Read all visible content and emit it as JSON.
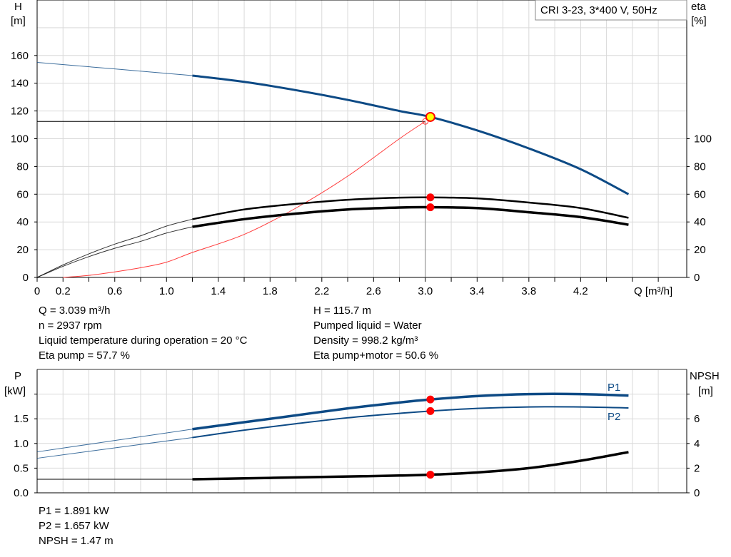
{
  "colors": {
    "head": "#0d4a85",
    "eta": "#000000",
    "system": "#ff3b3b",
    "point": "#ff0000",
    "duty": "#ffff00",
    "power": "#0d4a85",
    "npsh": "#000000",
    "grid": "#d9d9d9"
  },
  "chart_data": [
    {
      "type": "line",
      "title": "CRI 3-23, 3*400 V, 50Hz",
      "xlabel": "Q [m³/h]",
      "ylabel_left": "H",
      "ylabel_left_unit": "[m]",
      "ylabel_right": "eta",
      "ylabel_right_unit": "[%]",
      "xlim": [
        0,
        5.02
      ],
      "ylim": [
        0,
        200
      ],
      "y2lim": [
        0,
        200
      ],
      "grid": true,
      "xticks": [
        "0",
        "0.2",
        "0.6",
        "1.0",
        "1.4",
        "1.8",
        "2.2",
        "2.6",
        "3.0",
        "3.4",
        "3.8",
        "4.2"
      ],
      "xtick_values": [
        0,
        0.2,
        0.6,
        1.0,
        1.4,
        1.8,
        2.2,
        2.6,
        3.0,
        3.4,
        3.8,
        4.2
      ],
      "yticks": [
        0,
        20,
        40,
        60,
        80,
        100,
        120,
        140,
        160
      ],
      "y2ticks": [
        0,
        20,
        40,
        60,
        80,
        100
      ],
      "series": [
        {
          "id": "H",
          "axis": "left",
          "dashed_until": 1.2,
          "x": [
            0,
            0.6,
            1.2,
            1.6,
            2.0,
            2.4,
            2.8,
            3.039,
            3.4,
            3.8,
            4.2,
            4.57
          ],
          "y": [
            155,
            150.3,
            145.5,
            141,
            135,
            128,
            120,
            115.7,
            106,
            93,
            78,
            60
          ]
        },
        {
          "id": "eta_pump",
          "axis": "right",
          "dashed_until": 1.2,
          "x": [
            0,
            0.2,
            0.4,
            0.6,
            0.8,
            1.0,
            1.2,
            1.6,
            2.0,
            2.4,
            2.8,
            3.039,
            3.4,
            3.8,
            4.2,
            4.57
          ],
          "y": [
            0,
            9,
            17,
            24,
            30,
            37,
            42,
            49,
            53,
            56,
            57.5,
            57.7,
            57,
            54,
            50,
            43
          ]
        },
        {
          "id": "eta_total",
          "axis": "right",
          "dashed_until": 1.2,
          "x": [
            0,
            0.2,
            0.4,
            0.6,
            0.8,
            1.0,
            1.2,
            1.6,
            2.0,
            2.4,
            2.8,
            3.039,
            3.4,
            3.8,
            4.2,
            4.57
          ],
          "y": [
            0,
            8,
            15,
            21,
            26,
            32,
            36.5,
            42,
            46,
            49,
            50.4,
            50.6,
            50,
            47,
            43.5,
            38
          ]
        },
        {
          "id": "system",
          "axis": "left",
          "x": [
            0.2,
            0.4,
            0.6,
            0.8,
            1.0,
            1.2,
            1.6,
            2.0,
            2.4,
            2.8,
            3.0
          ],
          "y": [
            0,
            1.5,
            4,
            7,
            11,
            18,
            31,
            50,
            73,
            100,
            112.5
          ]
        }
      ],
      "duty_point": {
        "Q": 3.039,
        "H": 115.7,
        "eta_pump": 57.7,
        "eta_total": 50.6
      },
      "reference_lines": {
        "H": 112.5,
        "Q": 3.0
      }
    },
    {
      "type": "line",
      "ylabel_left": "P",
      "ylabel_left_unit": "[kW]",
      "ylabel_right": "NPSH",
      "ylabel_right_unit": "[m]",
      "xlim": [
        0,
        5.02
      ],
      "ylim": [
        0,
        2.5
      ],
      "y2lim": [
        0,
        10
      ],
      "grid": true,
      "yticks": [
        "0.0",
        "0.5",
        "1.0",
        "1.5"
      ],
      "ytick_values": [
        0,
        0.5,
        1.0,
        1.5,
        2.0
      ],
      "y2ticks": [
        "0",
        "2",
        "4",
        "6"
      ],
      "y2tick_values": [
        0,
        2,
        4,
        6,
        8
      ],
      "series": [
        {
          "id": "P1",
          "name": "P1",
          "axis": "left",
          "dashed_until": 1.2,
          "x": [
            0,
            1.2,
            1.6,
            2.0,
            2.4,
            2.8,
            3.039,
            3.4,
            3.8,
            4.2,
            4.57
          ],
          "y": [
            0.83,
            1.29,
            1.43,
            1.57,
            1.71,
            1.83,
            1.891,
            1.96,
            2.0,
            2.0,
            1.97
          ]
        },
        {
          "id": "P2",
          "name": "P2",
          "axis": "left",
          "dashed_until": 1.2,
          "x": [
            0,
            1.2,
            1.6,
            2.0,
            2.4,
            2.8,
            3.039,
            3.4,
            3.8,
            4.2,
            4.57
          ],
          "y": [
            0.7,
            1.12,
            1.27,
            1.4,
            1.52,
            1.61,
            1.657,
            1.71,
            1.74,
            1.74,
            1.72
          ]
        },
        {
          "id": "NPSH",
          "axis": "right",
          "thin_until": 1.2,
          "x": [
            0,
            1.2,
            1.6,
            2.0,
            2.4,
            2.8,
            3.039,
            3.4,
            3.8,
            4.2,
            4.57
          ],
          "y": [
            1.1,
            1.1,
            1.17,
            1.25,
            1.32,
            1.4,
            1.47,
            1.65,
            2.0,
            2.6,
            3.3
          ]
        }
      ],
      "duty_point": {
        "Q": 3.039,
        "P1": 1.891,
        "P2": 1.657,
        "NPSH": 1.47
      }
    }
  ],
  "info_top": {
    "q": "Q = 3.039 m³/h",
    "n": "n = 2937 rpm",
    "temp": "Liquid temperature during operation = 20 °C",
    "eta_pump": "Eta pump = 57.7 %",
    "h": "H = 115.7 m",
    "liquid": "Pumped liquid = Water",
    "density": "Density = 998.2 kg/m³",
    "eta_total": "Eta pump+motor = 50.6 %"
  },
  "info_bottom": {
    "p1": "P1 = 1.891 kW",
    "p2": "P2 = 1.657 kW",
    "npsh": "NPSH = 1.47 m"
  }
}
